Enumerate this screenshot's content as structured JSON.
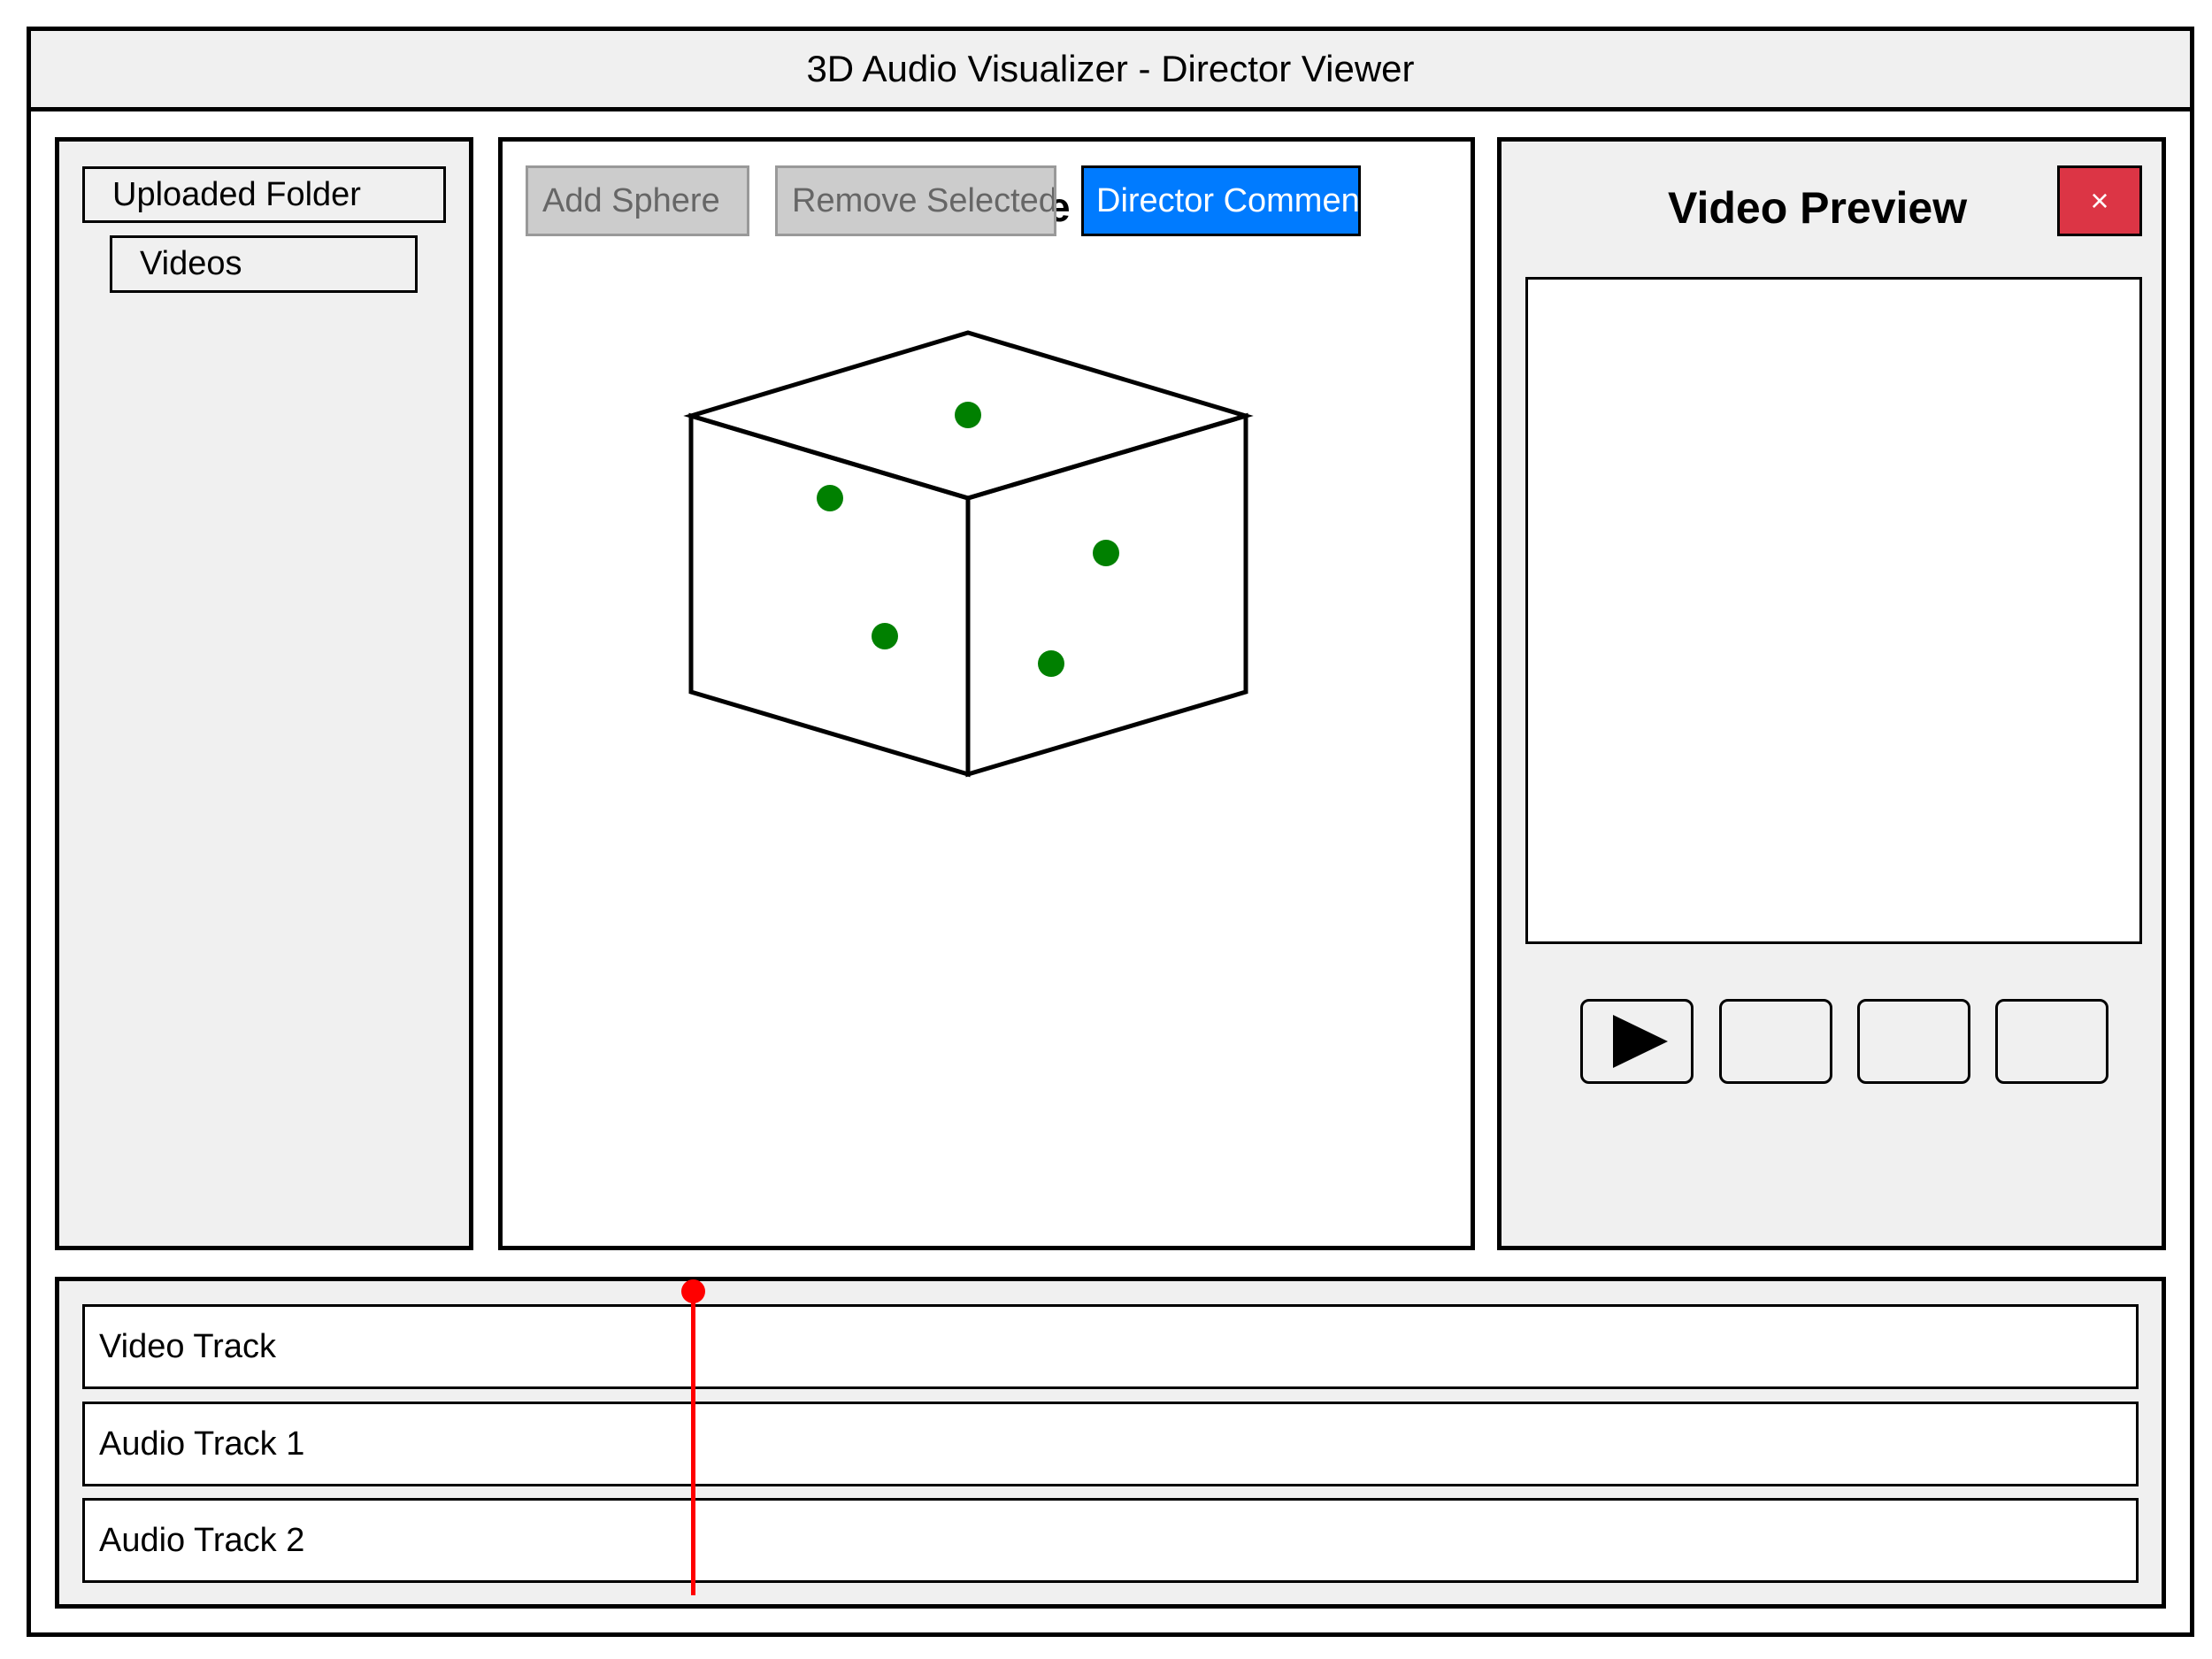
{
  "window": {
    "title": "3D Audio Visualizer - Director Viewer"
  },
  "sidebar": {
    "folder_label": "Uploaded Folder",
    "items": [
      {
        "label": "Videos"
      }
    ]
  },
  "viewer": {
    "heading": "e",
    "toolbar": {
      "add_label": "Add Sphere",
      "remove_label": "Remove Selected",
      "comment_label": "Director Comment"
    },
    "sphere_count": 5,
    "sphere_color": "#008000"
  },
  "preview": {
    "title": "Video Preview",
    "close_label": "×",
    "controls": [
      "play-icon",
      "",
      "",
      ""
    ]
  },
  "timeline": {
    "tracks": [
      {
        "label": "Video Track"
      },
      {
        "label": "Audio Track 1"
      },
      {
        "label": "Audio Track 2"
      }
    ],
    "playhead_color": "#ff0000"
  },
  "colors": {
    "panel_bg": "#f0f0f0",
    "accent_blue": "#007bff",
    "close_red": "#dc3545",
    "disabled_gray": "#cccccc"
  }
}
